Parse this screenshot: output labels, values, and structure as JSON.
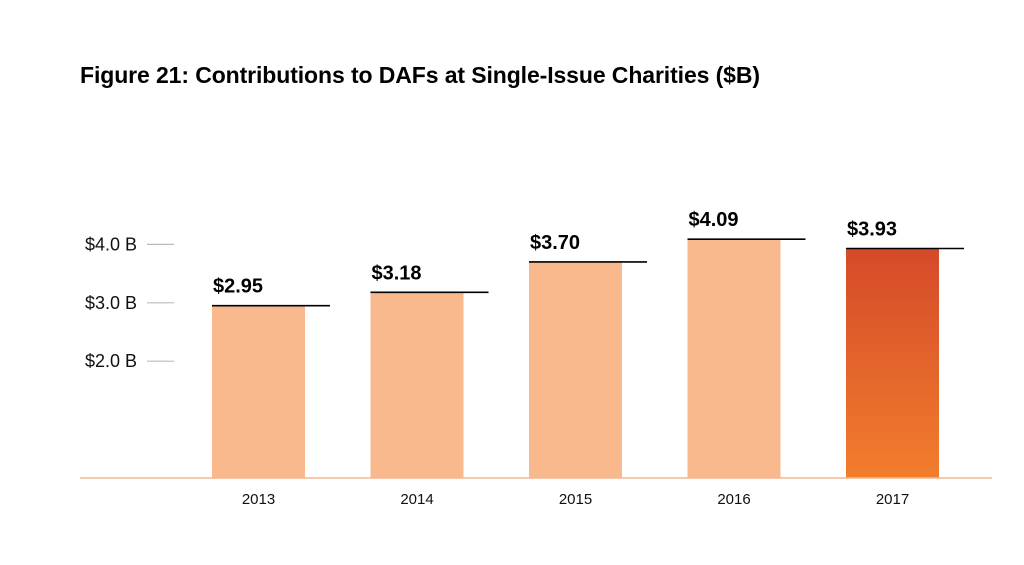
{
  "chart_data": {
    "type": "bar",
    "title": "Figure 21: Contributions to DAFs at Single-Issue Charities ($B)",
    "xlabel": "",
    "ylabel": "",
    "categories": [
      "2013",
      "2014",
      "2015",
      "2016",
      "2017"
    ],
    "values": [
      2.95,
      3.18,
      3.7,
      4.09,
      3.93
    ],
    "data_labels": [
      "$2.95",
      "$3.18",
      "$3.70",
      "$4.09",
      "$3.93"
    ],
    "yticks": [
      {
        "value": 2.0,
        "label": "$2.0 B"
      },
      {
        "value": 3.0,
        "label": "$3.0 B"
      },
      {
        "value": 4.0,
        "label": "$4.0 B"
      }
    ],
    "ylim": [
      0,
      4.3
    ],
    "grid": false,
    "legend": "none",
    "colors": {
      "bar": "#f9b98c",
      "highlight_top": "#d44a2a",
      "highlight_bottom": "#f27d2c",
      "baseline": "#f5b592",
      "tick": "#bbbbbb",
      "label_line": "#000000"
    },
    "highlight_index": 4
  }
}
